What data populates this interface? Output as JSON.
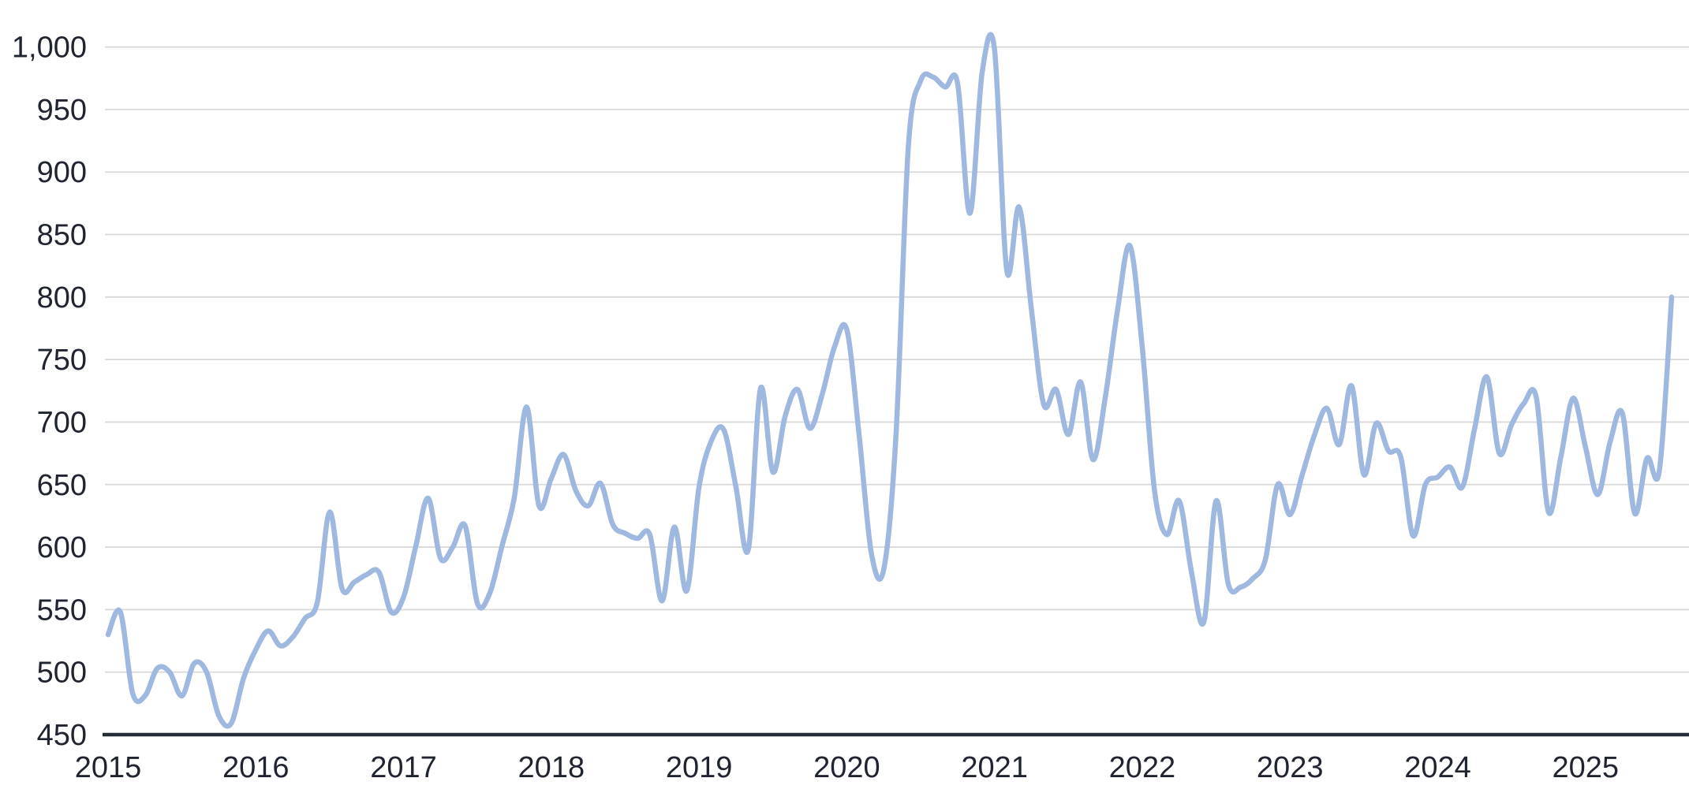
{
  "chart_data": {
    "type": "line",
    "title": "",
    "x_axis": {
      "tick_labels": [
        "2015",
        "2016",
        "2017",
        "2018",
        "2019",
        "2020",
        "2021",
        "2022",
        "2023",
        "2024",
        "2025"
      ],
      "tick_position": "january-of-year",
      "frequency": "monthly"
    },
    "y_axis": {
      "min": 450,
      "max": 1000,
      "step": 50,
      "tick_labels": [
        "450",
        "500",
        "550",
        "600",
        "650",
        "700",
        "750",
        "800",
        "850",
        "900",
        "950",
        "1,000"
      ]
    },
    "grid": true,
    "legend": false,
    "series": [
      {
        "name": "monthly-value",
        "color": "#9EB8DF",
        "start": "2015-01",
        "end": "2025-08",
        "values": [
          530,
          548,
          483,
          481,
          503,
          500,
          481,
          507,
          500,
          465,
          459,
          495,
          518,
          533,
          521,
          528,
          543,
          556,
          628,
          567,
          572,
          578,
          580,
          548,
          560,
          601,
          639,
          591,
          600,
          617,
          555,
          563,
          601,
          640,
          712,
          633,
          655,
          674,
          645,
          633,
          651,
          618,
          611,
          607,
          610,
          557,
          616,
          565,
          648,
          685,
          694,
          648,
          598,
          727,
          660,
          705,
          726,
          695,
          722,
          760,
          774,
          690,
          595,
          582,
          690,
          920,
          973,
          976,
          968,
          971,
          867,
          980,
          998,
          821,
          872,
          790,
          714,
          726,
          690,
          732,
          670,
          720,
          790,
          841,
          760,
          645,
          610,
          637,
          580,
          540,
          637,
          570,
          568,
          575,
          590,
          650,
          626,
          658,
          690,
          711,
          682,
          729,
          658,
          699,
          677,
          672,
          609,
          650,
          656,
          664,
          648,
          695,
          736,
          675,
          698,
          715,
          720,
          628,
          672,
          719,
          680,
          642,
          684,
          707,
          627,
          671,
          661,
          800
        ]
      }
    ]
  },
  "colors": {
    "line": "#9EB8DF",
    "gridline": "#D9D9D9",
    "axis_line": "#262B38",
    "tick_text": "#1F2430",
    "background": "#FFFFFF"
  }
}
